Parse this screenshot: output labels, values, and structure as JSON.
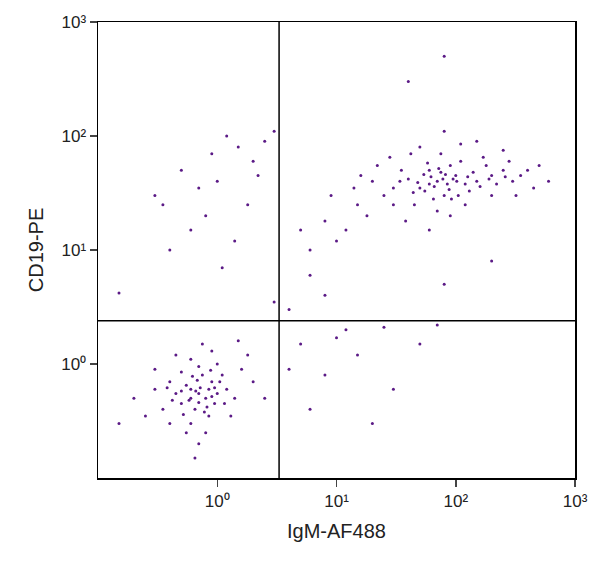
{
  "chart_data": {
    "type": "scatter",
    "x_label": "IgM-AF488",
    "y_label": "CD19-PE",
    "log": true,
    "grid": false,
    "color": "#5b1a86",
    "marker": "dot",
    "xlim": [
      0.1,
      1000
    ],
    "ylim": [
      0.1,
      1000
    ],
    "xticks": [
      {
        "value": 1,
        "label": "10⁰"
      },
      {
        "value": 10,
        "label": "10¹"
      },
      {
        "value": 100,
        "label": "10²"
      },
      {
        "value": 1000,
        "label": "10³"
      }
    ],
    "yticks": [
      {
        "value": 1,
        "label": "10⁰"
      },
      {
        "value": 10,
        "label": "10¹"
      },
      {
        "value": 100,
        "label": "10²"
      },
      {
        "value": 1000,
        "label": "10³"
      }
    ],
    "quadrant_x": 3.3,
    "quadrant_y": 2.4,
    "x": [
      0.7,
      0.6,
      0.8,
      0.5,
      0.9,
      0.65,
      0.75,
      0.55,
      1.0,
      0.45,
      0.85,
      0.6,
      1.2,
      0.4,
      0.7,
      0.95,
      0.5,
      1.1,
      0.35,
      0.8,
      0.6,
      1.4,
      0.3,
      0.7,
      1.6,
      0.45,
      0.9,
      0.25,
      1.3,
      0.55,
      2.0,
      0.2,
      1.8,
      0.4,
      0.75,
      1.5,
      0.3,
      2.5,
      0.65,
      0.15,
      1.0,
      0.85,
      0.6,
      0.72,
      0.58,
      0.68,
      0.82,
      0.5,
      0.95,
      0.62,
      1.15,
      0.42,
      0.78,
      0.88,
      0.52,
      1.05,
      0.38,
      0.7,
      0.66,
      0.9,
      70,
      50,
      100,
      80,
      60,
      120,
      40,
      90,
      150,
      30,
      200,
      65,
      110,
      45,
      250,
      75,
      55,
      130,
      35,
      180,
      300,
      85,
      95,
      62,
      140,
      48,
      160,
      25,
      220,
      70,
      105,
      58,
      400,
      20,
      350,
      500,
      15,
      12,
      18,
      10,
      8,
      14,
      22,
      28,
      600,
      450,
      280,
      170,
      75,
      42,
      120,
      90,
      200,
      320,
      38,
      60,
      110,
      250,
      150,
      80,
      50,
      6,
      9,
      16,
      5,
      30,
      66,
      78,
      88,
      54,
      102,
      72,
      44,
      126,
      92,
      34,
      190,
      260,
      60,
      82,
      0.3,
      0.5,
      1.2,
      1.5,
      2,
      0.8,
      1.0,
      0.6,
      2.5,
      1.8,
      0.4,
      1.1,
      2.2,
      0.9,
      3,
      0.35,
      1.4,
      0.7,
      5,
      8,
      15,
      30,
      6,
      12,
      50,
      20,
      4,
      70,
      10,
      25,
      4,
      3,
      80,
      200,
      80,
      40,
      0.15,
      8,
      6
    ],
    "values": [
      0.55,
      0.6,
      0.5,
      0.45,
      0.7,
      0.4,
      0.8,
      0.65,
      0.55,
      0.55,
      0.35,
      0.3,
      0.6,
      0.7,
      0.95,
      0.45,
      0.85,
      0.8,
      0.4,
      0.25,
      1.1,
      0.5,
      0.6,
      0.2,
      0.9,
      1.2,
      1.3,
      0.35,
      0.35,
      0.25,
      0.7,
      0.5,
      1.2,
      0.3,
      1.5,
      1.6,
      0.9,
      0.5,
      0.15,
      0.3,
      1.0,
      0.6,
      0.5,
      0.62,
      0.48,
      0.72,
      0.42,
      0.58,
      0.62,
      0.78,
      0.45,
      0.48,
      0.38,
      0.88,
      0.36,
      0.7,
      0.62,
      0.46,
      0.58,
      0.52,
      40,
      35,
      45,
      30,
      50,
      38,
      42,
      55,
      40,
      35,
      45,
      28,
      60,
      25,
      50,
      48,
      33,
      33,
      50,
      55,
      40,
      38,
      42,
      44,
      48,
      39,
      36,
      30,
      38,
      22,
      30,
      58,
      50,
      40,
      45,
      55,
      25,
      15,
      20,
      12,
      18,
      35,
      55,
      65,
      40,
      35,
      60,
      65,
      70,
      70,
      25,
      20,
      30,
      30,
      18,
      15,
      85,
      75,
      90,
      110,
      80,
      10,
      30,
      45,
      15,
      25,
      36,
      42,
      34,
      46,
      40,
      52,
      32,
      44,
      28,
      40,
      42,
      44,
      38,
      46,
      30,
      50,
      100,
      80,
      60,
      20,
      40,
      15,
      90,
      25,
      10,
      7,
      45,
      70,
      110,
      25,
      12,
      35,
      1.5,
      0.8,
      1.2,
      0.6,
      0.4,
      2,
      1.5,
      0.3,
      0.9,
      2.2,
      1.7,
      2.1,
      3,
      3.5,
      5,
      8,
      500,
      300,
      4.2,
      4,
      6
    ]
  }
}
